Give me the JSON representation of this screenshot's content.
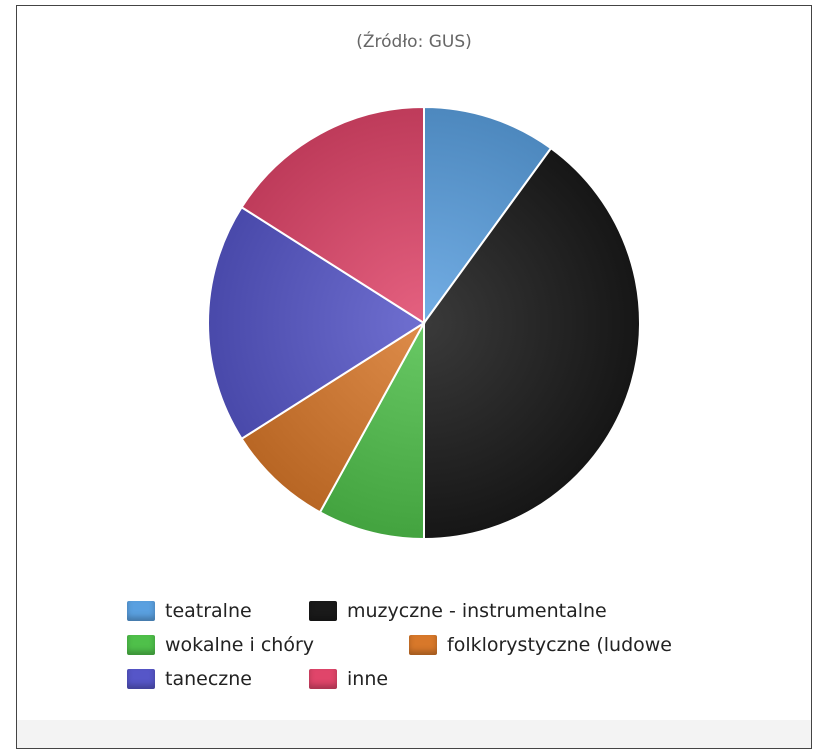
{
  "chart_data": {
    "type": "pie",
    "subtitle": "(Źródło: GUS)",
    "slices": [
      {
        "label": "teatralne",
        "value": 10,
        "color": "#5aa0e0"
      },
      {
        "label": "muzyczne - instrumentalne",
        "value": 40,
        "color": "#1a1a1a"
      },
      {
        "label": "wokalne i chóry",
        "value": 8,
        "color": "#4fc04a"
      },
      {
        "label": "folklorystyczne (ludowe",
        "value": 8,
        "color": "#d8782a"
      },
      {
        "label": "taneczne",
        "value": 18,
        "color": "#5656c8"
      },
      {
        "label": "inne",
        "value": 16,
        "color": "#e0456a"
      }
    ],
    "legend_position": "bottom"
  }
}
